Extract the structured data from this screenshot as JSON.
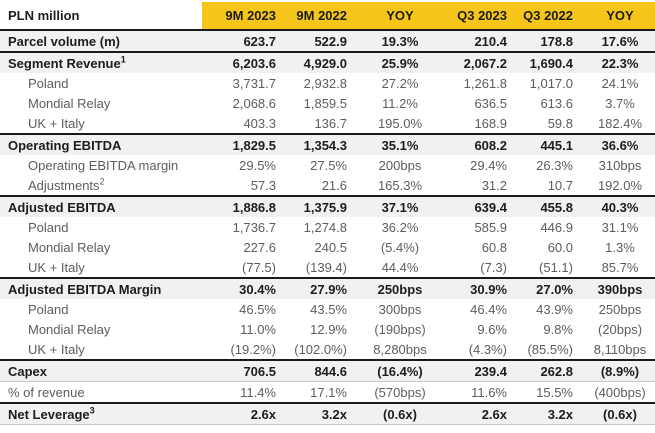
{
  "colors": {
    "header_yellow": "#F6C51A",
    "section_row_gray": "#F1F1F1",
    "rule_dark": "#1a1a1a",
    "rule_light": "#c8c8c8",
    "text_dark": "#1d1d1d",
    "text_gray": "#5d5d5d"
  },
  "header": {
    "label_col": "PLN million",
    "columns": [
      "9M 2023",
      "9M 2022",
      "YOY",
      "Q3 2023",
      "Q3 2022",
      "YOY"
    ]
  },
  "chart_data": {
    "type": "table",
    "title": "PLN million",
    "categories": [
      "9M 2023",
      "9M 2022",
      "YOY",
      "Q3 2023",
      "Q3 2022",
      "YOY"
    ]
  },
  "table": {
    "rows": [
      {
        "label": "Parcel volume (m)",
        "sup": "",
        "style": "section",
        "top_line": "dark",
        "bottom_line": "",
        "values": [
          "623.7",
          "522.9",
          "19.3%",
          "210.4",
          "178.8",
          "17.6%"
        ]
      },
      {
        "label": "Segment Revenue",
        "sup": "1",
        "style": "section",
        "top_line": "dark",
        "bottom_line": "",
        "values": [
          "6,203.6",
          "4,929.0",
          "25.9%",
          "2,067.2",
          "1,690.4",
          "22.3%"
        ]
      },
      {
        "label": "Poland",
        "sup": "",
        "style": "sub",
        "top_line": "",
        "bottom_line": "",
        "values": [
          "3,731.7",
          "2,932.8",
          "27.2%",
          "1,261.8",
          "1,017.0",
          "24.1%"
        ]
      },
      {
        "label": "Mondial Relay",
        "sup": "",
        "style": "sub",
        "top_line": "",
        "bottom_line": "",
        "values": [
          "2,068.6",
          "1,859.5",
          "11.2%",
          "636.5",
          "613.6",
          "3.7%"
        ]
      },
      {
        "label": "UK + Italy",
        "sup": "",
        "style": "sub",
        "top_line": "",
        "bottom_line": "",
        "values": [
          "403.3",
          "136.7",
          "195.0%",
          "168.9",
          "59.8",
          "182.4%"
        ]
      },
      {
        "label": "Operating EBITDA",
        "sup": "",
        "style": "section",
        "top_line": "dark",
        "bottom_line": "",
        "values": [
          "1,829.5",
          "1,354.3",
          "35.1%",
          "608.2",
          "445.1",
          "36.6%"
        ]
      },
      {
        "label": "Operating EBITDA margin",
        "sup": "",
        "style": "sub",
        "top_line": "",
        "bottom_line": "",
        "values": [
          "29.5%",
          "27.5%",
          "200bps",
          "29.4%",
          "26.3%",
          "310bps"
        ]
      },
      {
        "label": "Adjustments",
        "sup": "2",
        "style": "sub",
        "top_line": "",
        "bottom_line": "",
        "values": [
          "57.3",
          "21.6",
          "165.3%",
          "31.2",
          "10.7",
          "192.0%"
        ]
      },
      {
        "label": "Adjusted EBITDA",
        "sup": "",
        "style": "section",
        "top_line": "dark",
        "bottom_line": "",
        "values": [
          "1,886.8",
          "1,375.9",
          "37.1%",
          "639.4",
          "455.8",
          "40.3%"
        ]
      },
      {
        "label": "Poland",
        "sup": "",
        "style": "sub",
        "top_line": "",
        "bottom_line": "",
        "values": [
          "1,736.7",
          "1,274.8",
          "36.2%",
          "585.9",
          "446.9",
          "31.1%"
        ]
      },
      {
        "label": "Mondial Relay",
        "sup": "",
        "style": "sub",
        "top_line": "",
        "bottom_line": "",
        "values": [
          "227.6",
          "240.5",
          "(5.4%)",
          "60.8",
          "60.0",
          "1.3%"
        ]
      },
      {
        "label": "UK + Italy",
        "sup": "",
        "style": "sub",
        "top_line": "",
        "bottom_line": "",
        "values": [
          "(77.5)",
          "(139.4)",
          "44.4%",
          "(7.3)",
          "(51.1)",
          "85.7%"
        ]
      },
      {
        "label": "Adjusted EBITDA Margin",
        "sup": "",
        "style": "section",
        "top_line": "dark",
        "bottom_line": "",
        "values": [
          "30.4%",
          "27.9%",
          "250bps",
          "30.9%",
          "27.0%",
          "390bps"
        ]
      },
      {
        "label": "Poland",
        "sup": "",
        "style": "sub",
        "top_line": "",
        "bottom_line": "",
        "values": [
          "46.5%",
          "43.5%",
          "300bps",
          "46.4%",
          "43.9%",
          "250bps"
        ]
      },
      {
        "label": "Mondial Relay",
        "sup": "",
        "style": "sub",
        "top_line": "",
        "bottom_line": "",
        "values": [
          "11.0%",
          "12.9%",
          "(190bps)",
          "9.6%",
          "9.8%",
          "(20bps)"
        ]
      },
      {
        "label": "UK + Italy",
        "sup": "",
        "style": "sub",
        "top_line": "",
        "bottom_line": "",
        "values": [
          "(19.2%)",
          "(102.0%)",
          "8,280bps",
          "(4.3%)",
          "(85.5%)",
          "8,110bps"
        ]
      },
      {
        "label": "Capex",
        "sup": "",
        "style": "section",
        "top_line": "dark",
        "bottom_line": "light",
        "values": [
          "706.5",
          "844.6",
          "(16.4%)",
          "239.4",
          "262.8",
          "(8.9%)"
        ]
      },
      {
        "label": "% of revenue",
        "sup": "",
        "style": "plain",
        "top_line": "",
        "bottom_line": "",
        "values": [
          "11.4%",
          "17.1%",
          "(570bps)",
          "11.6%",
          "15.5%",
          "(400bps)"
        ]
      },
      {
        "label": "Net Leverage",
        "sup": "3",
        "style": "section",
        "top_line": "dark",
        "bottom_line": "light",
        "values": [
          "2.6x",
          "3.2x",
          "(0.6x)",
          "2.6x",
          "3.2x",
          "(0.6x)"
        ]
      }
    ]
  }
}
